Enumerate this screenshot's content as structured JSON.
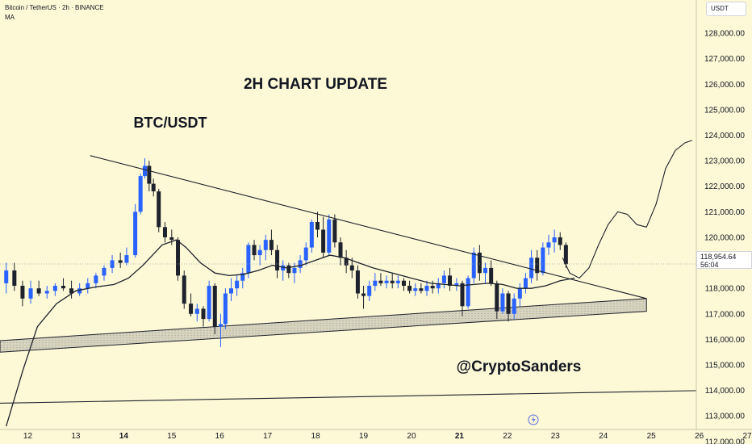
{
  "header": {
    "symbol_line": "Bitcoin / TetherUS · 2h · BINANCE",
    "indicator": "MA"
  },
  "annotations": {
    "headline": "2H CHART UPDATE",
    "pair": "BTC/USDT",
    "watermark": "@CryptoSanders"
  },
  "price_scale": {
    "unit": "USDT",
    "current_price": "118,954.64",
    "countdown": "56:04"
  },
  "colors": {
    "background": "#fdf8d6",
    "up_candle": "#2962ff",
    "down_candle": "#1e222d",
    "line": "#1e222d",
    "support_band": "#d6d3bf"
  },
  "chart_data": {
    "type": "candlestick",
    "timeframe": "2h",
    "y_axis": {
      "ticks": [
        "112,000.00",
        "113,000.00",
        "114,000.00",
        "115,000.00",
        "116,000.00",
        "117,000.00",
        "118,000.00",
        "119,000.00",
        "120,000.00",
        "121,000.00",
        "122,000.00",
        "123,000.00",
        "124,000.00",
        "125,000.00",
        "126,000.00",
        "127,000.00",
        "128,000.00"
      ],
      "ylim": [
        111900,
        129300
      ]
    },
    "x_axis": {
      "ticks": [
        "12",
        "13",
        "14",
        "15",
        "16",
        "17",
        "18",
        "19",
        "20",
        "21",
        "22",
        "23",
        "24",
        "25",
        "26",
        "27"
      ],
      "bold_ticks": [
        "14",
        "21"
      ],
      "xlim": [
        11.42,
        27.1
      ]
    },
    "series": [
      {
        "name": "BTCUSDT",
        "kind": "ohlc",
        "points": [
          {
            "t": 11.55,
            "o": 118200,
            "h": 119000,
            "l": 117800,
            "c": 118700
          },
          {
            "t": 11.72,
            "o": 118700,
            "h": 119000,
            "l": 117900,
            "c": 118100
          },
          {
            "t": 11.89,
            "o": 118100,
            "h": 118300,
            "l": 117300,
            "c": 117600
          },
          {
            "t": 12.06,
            "o": 117600,
            "h": 118300,
            "l": 117400,
            "c": 118000
          },
          {
            "t": 12.23,
            "o": 118000,
            "h": 118300,
            "l": 117700,
            "c": 117800
          },
          {
            "t": 12.4,
            "o": 117800,
            "h": 118100,
            "l": 117600,
            "c": 117900
          },
          {
            "t": 12.57,
            "o": 117900,
            "h": 118200,
            "l": 117700,
            "c": 118100
          },
          {
            "t": 12.74,
            "o": 118100,
            "h": 118400,
            "l": 117900,
            "c": 118000
          },
          {
            "t": 12.91,
            "o": 118000,
            "h": 118300,
            "l": 117600,
            "c": 117800
          },
          {
            "t": 13.08,
            "o": 117800,
            "h": 118200,
            "l": 117700,
            "c": 118000
          },
          {
            "t": 13.25,
            "o": 118000,
            "h": 118400,
            "l": 117800,
            "c": 118200
          },
          {
            "t": 13.42,
            "o": 118200,
            "h": 118600,
            "l": 118000,
            "c": 118500
          },
          {
            "t": 13.59,
            "o": 118500,
            "h": 118900,
            "l": 118300,
            "c": 118800
          },
          {
            "t": 13.76,
            "o": 118800,
            "h": 119300,
            "l": 118600,
            "c": 119100
          },
          {
            "t": 13.93,
            "o": 119100,
            "h": 119400,
            "l": 118800,
            "c": 119000
          },
          {
            "t": 14.06,
            "o": 119000,
            "h": 119600,
            "l": 118900,
            "c": 119300
          },
          {
            "t": 14.24,
            "o": 119300,
            "h": 121300,
            "l": 119200,
            "c": 121000
          },
          {
            "t": 14.35,
            "o": 121000,
            "h": 122500,
            "l": 120900,
            "c": 122400
          },
          {
            "t": 14.44,
            "o": 122400,
            "h": 123100,
            "l": 122300,
            "c": 122800
          },
          {
            "t": 14.53,
            "o": 122800,
            "h": 123000,
            "l": 121800,
            "c": 122100
          },
          {
            "t": 14.62,
            "o": 122100,
            "h": 122300,
            "l": 121600,
            "c": 121800
          },
          {
            "t": 14.73,
            "o": 121800,
            "h": 121900,
            "l": 120200,
            "c": 120400
          },
          {
            "t": 14.86,
            "o": 120400,
            "h": 120600,
            "l": 119800,
            "c": 120000
          },
          {
            "t": 15.0,
            "o": 120000,
            "h": 120300,
            "l": 119700,
            "c": 119900
          },
          {
            "t": 15.13,
            "o": 119900,
            "h": 120000,
            "l": 118300,
            "c": 118500
          },
          {
            "t": 15.26,
            "o": 118500,
            "h": 118700,
            "l": 117200,
            "c": 117400
          },
          {
            "t": 15.4,
            "o": 117400,
            "h": 117800,
            "l": 116900,
            "c": 117000
          },
          {
            "t": 15.53,
            "o": 117000,
            "h": 117400,
            "l": 116700,
            "c": 117200
          },
          {
            "t": 15.66,
            "o": 117200,
            "h": 117300,
            "l": 116500,
            "c": 116800
          },
          {
            "t": 15.78,
            "o": 116800,
            "h": 118300,
            "l": 116700,
            "c": 118100
          },
          {
            "t": 15.9,
            "o": 118100,
            "h": 118200,
            "l": 116200,
            "c": 116500
          },
          {
            "t": 16.02,
            "o": 116500,
            "h": 117000,
            "l": 115700,
            "c": 116600
          },
          {
            "t": 16.12,
            "o": 116600,
            "h": 118000,
            "l": 116400,
            "c": 117800
          },
          {
            "t": 16.24,
            "o": 117800,
            "h": 118400,
            "l": 117500,
            "c": 118000
          },
          {
            "t": 16.36,
            "o": 118000,
            "h": 118500,
            "l": 117700,
            "c": 118300
          },
          {
            "t": 16.48,
            "o": 118300,
            "h": 118800,
            "l": 118000,
            "c": 118600
          },
          {
            "t": 16.6,
            "o": 118600,
            "h": 119800,
            "l": 118400,
            "c": 119700
          },
          {
            "t": 16.72,
            "o": 119700,
            "h": 119900,
            "l": 119100,
            "c": 119300
          },
          {
            "t": 16.84,
            "o": 119300,
            "h": 119700,
            "l": 118900,
            "c": 119500
          },
          {
            "t": 16.96,
            "o": 119500,
            "h": 120100,
            "l": 119100,
            "c": 119900
          },
          {
            "t": 17.08,
            "o": 119900,
            "h": 120300,
            "l": 119300,
            "c": 119500
          },
          {
            "t": 17.2,
            "o": 119500,
            "h": 119700,
            "l": 118400,
            "c": 118700
          },
          {
            "t": 17.32,
            "o": 118700,
            "h": 119100,
            "l": 118300,
            "c": 118900
          },
          {
            "t": 17.44,
            "o": 118900,
            "h": 119000,
            "l": 118400,
            "c": 118600
          },
          {
            "t": 17.56,
            "o": 118600,
            "h": 119000,
            "l": 118200,
            "c": 118800
          },
          {
            "t": 17.68,
            "o": 118800,
            "h": 119300,
            "l": 118600,
            "c": 119100
          },
          {
            "t": 17.8,
            "o": 119100,
            "h": 119800,
            "l": 118900,
            "c": 119600
          },
          {
            "t": 17.92,
            "o": 119600,
            "h": 120700,
            "l": 119400,
            "c": 120600
          },
          {
            "t": 18.04,
            "o": 120600,
            "h": 121000,
            "l": 120000,
            "c": 120300
          },
          {
            "t": 18.16,
            "o": 120300,
            "h": 120800,
            "l": 119200,
            "c": 119400
          },
          {
            "t": 18.28,
            "o": 119400,
            "h": 120900,
            "l": 119300,
            "c": 120700
          },
          {
            "t": 18.4,
            "o": 120700,
            "h": 120900,
            "l": 119600,
            "c": 119800
          },
          {
            "t": 18.52,
            "o": 119800,
            "h": 120000,
            "l": 118900,
            "c": 119200
          },
          {
            "t": 18.64,
            "o": 119200,
            "h": 119500,
            "l": 118600,
            "c": 118900
          },
          {
            "t": 18.76,
            "o": 118900,
            "h": 119200,
            "l": 118400,
            "c": 118700
          },
          {
            "t": 18.88,
            "o": 118700,
            "h": 118900,
            "l": 117600,
            "c": 117800
          },
          {
            "t": 19.0,
            "o": 117800,
            "h": 118100,
            "l": 117200,
            "c": 117700
          },
          {
            "t": 19.12,
            "o": 117700,
            "h": 118300,
            "l": 117500,
            "c": 118100
          },
          {
            "t": 19.24,
            "o": 118100,
            "h": 118600,
            "l": 117900,
            "c": 118300
          },
          {
            "t": 19.36,
            "o": 118300,
            "h": 118600,
            "l": 118100,
            "c": 118200
          },
          {
            "t": 19.48,
            "o": 118200,
            "h": 118500,
            "l": 118000,
            "c": 118300
          },
          {
            "t": 19.6,
            "o": 118300,
            "h": 118600,
            "l": 118000,
            "c": 118200
          },
          {
            "t": 19.72,
            "o": 118200,
            "h": 118500,
            "l": 118000,
            "c": 118300
          },
          {
            "t": 19.84,
            "o": 118300,
            "h": 118400,
            "l": 117900,
            "c": 118100
          },
          {
            "t": 19.96,
            "o": 118100,
            "h": 118300,
            "l": 117800,
            "c": 117900
          },
          {
            "t": 20.08,
            "o": 117900,
            "h": 118200,
            "l": 117700,
            "c": 118000
          },
          {
            "t": 20.2,
            "o": 118000,
            "h": 118200,
            "l": 117800,
            "c": 117900
          },
          {
            "t": 20.32,
            "o": 117900,
            "h": 118300,
            "l": 117700,
            "c": 118100
          },
          {
            "t": 20.44,
            "o": 118100,
            "h": 118300,
            "l": 117800,
            "c": 118000
          },
          {
            "t": 20.56,
            "o": 118000,
            "h": 118400,
            "l": 117800,
            "c": 118200
          },
          {
            "t": 20.68,
            "o": 118200,
            "h": 118700,
            "l": 118000,
            "c": 118500
          },
          {
            "t": 20.8,
            "o": 118500,
            "h": 118800,
            "l": 117900,
            "c": 118100
          },
          {
            "t": 20.94,
            "o": 118100,
            "h": 118400,
            "l": 117900,
            "c": 118200
          },
          {
            "t": 21.06,
            "o": 118200,
            "h": 118300,
            "l": 116900,
            "c": 117300
          },
          {
            "t": 21.18,
            "o": 117300,
            "h": 118500,
            "l": 117200,
            "c": 118400
          },
          {
            "t": 21.3,
            "o": 118400,
            "h": 119600,
            "l": 118200,
            "c": 119400
          },
          {
            "t": 21.42,
            "o": 119400,
            "h": 119700,
            "l": 118300,
            "c": 118600
          },
          {
            "t": 21.54,
            "o": 118600,
            "h": 119000,
            "l": 118200,
            "c": 118800
          },
          {
            "t": 21.66,
            "o": 118800,
            "h": 119100,
            "l": 118100,
            "c": 118200
          },
          {
            "t": 21.78,
            "o": 118200,
            "h": 118300,
            "l": 116800,
            "c": 117100
          },
          {
            "t": 21.9,
            "o": 117100,
            "h": 118000,
            "l": 117000,
            "c": 117800
          },
          {
            "t": 22.02,
            "o": 117800,
            "h": 117900,
            "l": 116700,
            "c": 117000
          },
          {
            "t": 22.14,
            "o": 117000,
            "h": 117800,
            "l": 116800,
            "c": 117600
          },
          {
            "t": 22.26,
            "o": 117600,
            "h": 118200,
            "l": 117300,
            "c": 118000
          },
          {
            "t": 22.38,
            "o": 118000,
            "h": 118600,
            "l": 117800,
            "c": 118400
          },
          {
            "t": 22.5,
            "o": 118400,
            "h": 119500,
            "l": 118200,
            "c": 119200
          },
          {
            "t": 22.62,
            "o": 119200,
            "h": 119500,
            "l": 118300,
            "c": 118600
          },
          {
            "t": 22.74,
            "o": 118600,
            "h": 119800,
            "l": 118500,
            "c": 119600
          },
          {
            "t": 22.86,
            "o": 119600,
            "h": 120100,
            "l": 119300,
            "c": 119800
          },
          {
            "t": 22.98,
            "o": 119800,
            "h": 120300,
            "l": 119400,
            "c": 120000
          },
          {
            "t": 23.1,
            "o": 120000,
            "h": 120200,
            "l": 119500,
            "c": 119700
          },
          {
            "t": 23.22,
            "o": 119700,
            "h": 119800,
            "l": 118800,
            "c": 118950
          }
        ]
      },
      {
        "name": "MA",
        "kind": "line",
        "x": [
          11.55,
          11.9,
          12.2,
          12.6,
          13.0,
          13.4,
          13.8,
          14.1,
          14.4,
          14.8,
          15.1,
          15.3,
          15.6,
          15.9,
          16.2,
          16.5,
          16.8,
          17.1,
          17.4,
          17.7,
          18.0,
          18.3,
          18.6,
          18.9,
          19.2,
          19.5,
          19.8,
          20.1,
          20.4,
          20.7,
          21.0,
          21.3,
          21.6,
          21.9,
          22.2,
          22.5,
          22.8,
          23.1,
          23.4
        ],
        "y": [
          112600,
          114800,
          116500,
          117400,
          117900,
          118050,
          118150,
          118400,
          118900,
          119700,
          119900,
          119600,
          119000,
          118600,
          118500,
          118550,
          118700,
          118900,
          118800,
          118900,
          119100,
          119300,
          119200,
          119000,
          118800,
          118650,
          118500,
          118350,
          118200,
          118150,
          118100,
          118150,
          118200,
          118150,
          118000,
          118000,
          118100,
          118300,
          118400
        ]
      },
      {
        "name": "Projection",
        "kind": "line",
        "x": [
          23.15,
          23.3,
          23.5,
          23.7,
          23.9,
          24.1,
          24.3,
          24.5,
          24.7,
          24.9,
          25.1,
          25.3,
          25.5,
          25.7,
          25.85
        ],
        "y": [
          119200,
          118600,
          118400,
          118800,
          119700,
          120500,
          121000,
          120900,
          120500,
          120400,
          121300,
          122700,
          123400,
          123700,
          123800
        ]
      }
    ],
    "drawings": [
      {
        "kind": "trendline",
        "label": "descending resistance",
        "points": [
          [
            13.3,
            123200
          ],
          [
            24.9,
            117600
          ]
        ]
      },
      {
        "kind": "band",
        "label": "ascending support",
        "lower": [
          [
            11.42,
            115500
          ],
          [
            24.9,
            117100
          ]
        ],
        "upper": [
          [
            11.42,
            115950
          ],
          [
            24.9,
            117600
          ]
        ]
      },
      {
        "kind": "trendline",
        "label": "lower support",
        "points": [
          [
            11.42,
            113500
          ],
          [
            26.2,
            114000
          ]
        ]
      }
    ]
  }
}
